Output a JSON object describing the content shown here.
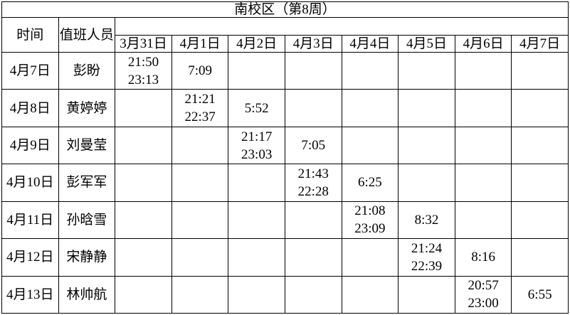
{
  "title": "南校区（第8周）",
  "colors": {
    "background": "#ffffff",
    "border": "#000000",
    "text": "#000000"
  },
  "header": {
    "time_label": "时间",
    "staff_label": "值班人员",
    "dates": [
      "3月31日",
      "4月1日",
      "4月2日",
      "4月3日",
      "4月4日",
      "4月5日",
      "4月6日",
      "4月7日"
    ]
  },
  "rows": [
    {
      "date": "4月7日",
      "name": "彭盼",
      "times": [
        "21:50\n23:13",
        "7:09",
        "",
        "",
        "",
        "",
        "",
        ""
      ]
    },
    {
      "date": "4月8日",
      "name": "黄婷婷",
      "times": [
        "",
        "21:21\n22:37",
        "5:52",
        "",
        "",
        "",
        "",
        ""
      ]
    },
    {
      "date": "4月9日",
      "name": "刘曼莹",
      "times": [
        "",
        "",
        "21:17\n23:03",
        "7:05",
        "",
        "",
        "",
        ""
      ]
    },
    {
      "date": "4月10日",
      "name": "彭军军",
      "times": [
        "",
        "",
        "",
        "21:43\n22:28",
        "6:25",
        "",
        "",
        ""
      ]
    },
    {
      "date": "4月11日",
      "name": "孙晗雪",
      "times": [
        "",
        "",
        "",
        "",
        "21:08\n23:09",
        "8:32",
        "",
        ""
      ]
    },
    {
      "date": "4月12日",
      "name": "宋静静",
      "times": [
        "",
        "",
        "",
        "",
        "",
        "21:24\n22:39",
        "8:16",
        ""
      ]
    },
    {
      "date": "4月13日",
      "name": "林帅航",
      "times": [
        "",
        "",
        "",
        "",
        "",
        "",
        "20:57\n23:00",
        "6:55"
      ]
    }
  ]
}
